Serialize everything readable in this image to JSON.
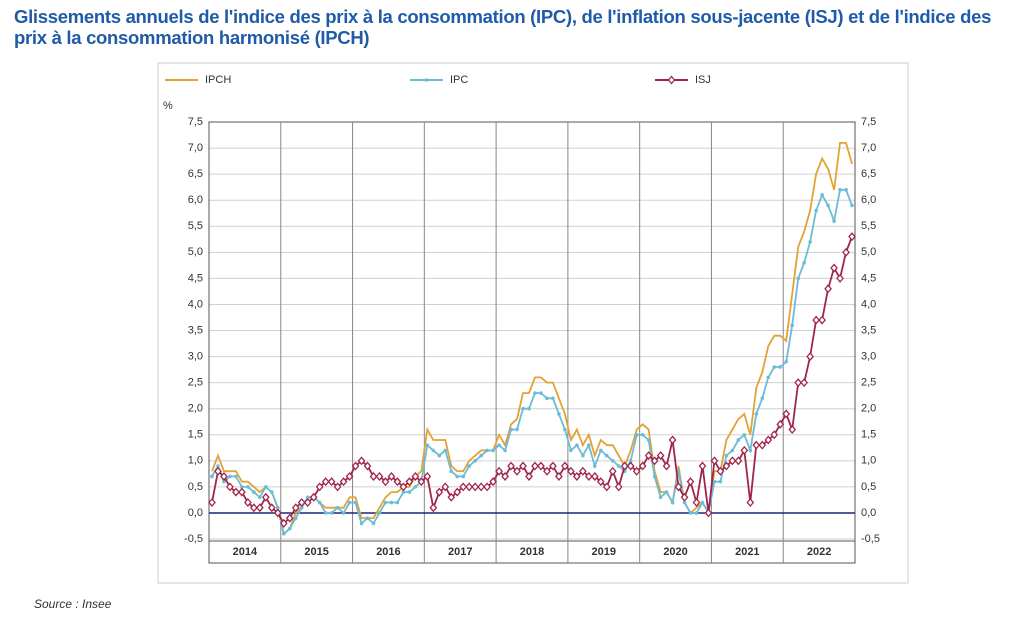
{
  "chart_data": {
    "type": "line",
    "title": "Glissements annuels de l'indice des prix à la consommation (IPC), de l'inflation sous-jacente (ISJ) et de l'indice des prix à la consommation harmonisé (IPCH)",
    "y_unit": "%",
    "source": "Source : Insee",
    "categories": [
      "2014",
      null,
      null,
      null,
      null,
      null,
      null,
      null,
      null,
      null,
      null,
      null,
      "2015",
      null,
      null,
      null,
      null,
      null,
      null,
      null,
      null,
      null,
      null,
      null,
      "2016",
      null,
      null,
      null,
      null,
      null,
      null,
      null,
      null,
      null,
      null,
      null,
      "2017",
      null,
      null,
      null,
      null,
      null,
      null,
      null,
      null,
      null,
      null,
      null,
      "2018",
      null,
      null,
      null,
      null,
      null,
      null,
      null,
      null,
      null,
      null,
      null,
      "2019",
      null,
      null,
      null,
      null,
      null,
      null,
      null,
      null,
      null,
      null,
      null,
      "2020",
      null,
      null,
      null,
      null,
      null,
      null,
      null,
      null,
      null,
      null,
      null,
      "2021",
      null,
      null,
      null,
      null,
      null,
      null,
      null,
      null,
      null,
      null,
      null,
      "2022",
      null,
      null,
      null,
      null,
      null,
      null,
      null,
      null,
      null,
      null,
      null
    ],
    "ylim": [
      -0.5,
      7.5
    ],
    "yticks": [
      {
        "value": -0.5,
        "label": "-0,5"
      },
      {
        "value": 0,
        "label": "0,0"
      },
      {
        "value": 0.5,
        "label": "0,5"
      },
      {
        "value": 1,
        "label": "1,0"
      },
      {
        "value": 1.5,
        "label": "1,5"
      },
      {
        "value": 2,
        "label": "2,0"
      },
      {
        "value": 2.5,
        "label": "2,5"
      },
      {
        "value": 3,
        "label": "3,0"
      },
      {
        "value": 3.5,
        "label": "3,5"
      },
      {
        "value": 4,
        "label": "4,0"
      },
      {
        "value": 4.5,
        "label": "4,5"
      },
      {
        "value": 5,
        "label": "5,0"
      },
      {
        "value": 5.5,
        "label": "5,5"
      },
      {
        "value": 6,
        "label": "6,0"
      },
      {
        "value": 6.5,
        "label": "6,5"
      },
      {
        "value": 7,
        "label": "7,0"
      },
      {
        "value": 7.5,
        "label": "7,5"
      }
    ],
    "grid": true,
    "zero_line_color": "#1a237e",
    "series": [
      {
        "name": "IPCH",
        "color": "#e3a233",
        "marker": "none",
        "values": [
          0.8,
          1.1,
          0.8,
          0.8,
          0.8,
          0.6,
          0.6,
          0.5,
          0.4,
          0.5,
          0.4,
          0.1,
          -0.4,
          -0.3,
          0.0,
          0.1,
          0.3,
          0.3,
          0.2,
          0.1,
          0.1,
          0.1,
          0.1,
          0.3,
          0.3,
          -0.1,
          -0.1,
          -0.1,
          0.1,
          0.3,
          0.4,
          0.4,
          0.5,
          0.5,
          0.7,
          0.8,
          1.6,
          1.4,
          1.4,
          1.4,
          0.9,
          0.8,
          0.8,
          1.0,
          1.1,
          1.2,
          1.2,
          1.2,
          1.5,
          1.3,
          1.7,
          1.8,
          2.3,
          2.3,
          2.6,
          2.6,
          2.5,
          2.5,
          2.2,
          1.9,
          1.4,
          1.6,
          1.3,
          1.5,
          1.1,
          1.4,
          1.3,
          1.3,
          1.1,
          0.9,
          1.2,
          1.6,
          1.7,
          1.6,
          0.8,
          0.4,
          0.4,
          0.2,
          0.9,
          0.2,
          0.0,
          0.1,
          0.2,
          0.0,
          0.8,
          0.8,
          1.4,
          1.6,
          1.8,
          1.9,
          1.5,
          2.4,
          2.7,
          3.2,
          3.4,
          3.4,
          3.3,
          4.2,
          5.1,
          5.4,
          5.8,
          6.5,
          6.8,
          6.6,
          6.2,
          7.1,
          7.1,
          6.7
        ]
      },
      {
        "name": "IPC",
        "color": "#6bbcd6",
        "marker": "dot",
        "values": [
          0.7,
          0.9,
          0.6,
          0.7,
          0.7,
          0.5,
          0.5,
          0.4,
          0.3,
          0.5,
          0.4,
          0.1,
          -0.4,
          -0.3,
          -0.1,
          0.1,
          0.3,
          0.3,
          0.2,
          0.0,
          0.0,
          0.1,
          0.0,
          0.2,
          0.2,
          -0.2,
          -0.1,
          -0.2,
          0.0,
          0.2,
          0.2,
          0.2,
          0.4,
          0.4,
          0.5,
          0.6,
          1.3,
          1.2,
          1.1,
          1.2,
          0.8,
          0.7,
          0.7,
          0.9,
          1.0,
          1.1,
          1.2,
          1.2,
          1.3,
          1.2,
          1.6,
          1.6,
          2.0,
          2.0,
          2.3,
          2.3,
          2.2,
          2.2,
          1.9,
          1.6,
          1.2,
          1.3,
          1.1,
          1.3,
          0.9,
          1.2,
          1.1,
          1.0,
          0.9,
          0.8,
          1.0,
          1.5,
          1.5,
          1.4,
          0.7,
          0.3,
          0.4,
          0.2,
          0.8,
          0.2,
          0.0,
          0.0,
          0.2,
          0.0,
          0.6,
          0.6,
          1.1,
          1.2,
          1.4,
          1.5,
          1.2,
          1.9,
          2.2,
          2.6,
          2.8,
          2.8,
          2.9,
          3.6,
          4.5,
          4.8,
          5.2,
          5.8,
          6.1,
          5.9,
          5.6,
          6.2,
          6.2,
          5.9
        ]
      },
      {
        "name": "ISJ",
        "color": "#a0254a",
        "marker": "diamond",
        "values": [
          0.2,
          0.8,
          0.7,
          0.5,
          0.4,
          0.4,
          0.2,
          0.1,
          0.1,
          0.3,
          0.1,
          0.0,
          -0.2,
          -0.1,
          0.1,
          0.2,
          0.2,
          0.3,
          0.5,
          0.6,
          0.6,
          0.5,
          0.6,
          0.7,
          0.9,
          1.0,
          0.9,
          0.7,
          0.7,
          0.6,
          0.7,
          0.6,
          0.5,
          0.6,
          0.7,
          0.6,
          0.7,
          0.1,
          0.4,
          0.5,
          0.3,
          0.4,
          0.5,
          0.5,
          0.5,
          0.5,
          0.5,
          0.6,
          0.8,
          0.7,
          0.9,
          0.8,
          0.9,
          0.7,
          0.9,
          0.9,
          0.8,
          0.9,
          0.7,
          0.9,
          0.8,
          0.7,
          0.8,
          0.7,
          0.7,
          0.6,
          0.5,
          0.8,
          0.5,
          0.9,
          0.9,
          0.8,
          0.9,
          1.1,
          1.0,
          1.1,
          0.9,
          1.4,
          0.5,
          0.3,
          0.6,
          0.2,
          0.9,
          0.0,
          1.0,
          0.8,
          0.9,
          1.0,
          1.0,
          1.2,
          0.2,
          1.3,
          1.3,
          1.4,
          1.5,
          1.7,
          1.9,
          1.6,
          2.5,
          2.5,
          3.0,
          3.7,
          3.7,
          4.3,
          4.7,
          4.5,
          5.0,
          5.3
        ]
      }
    ]
  }
}
